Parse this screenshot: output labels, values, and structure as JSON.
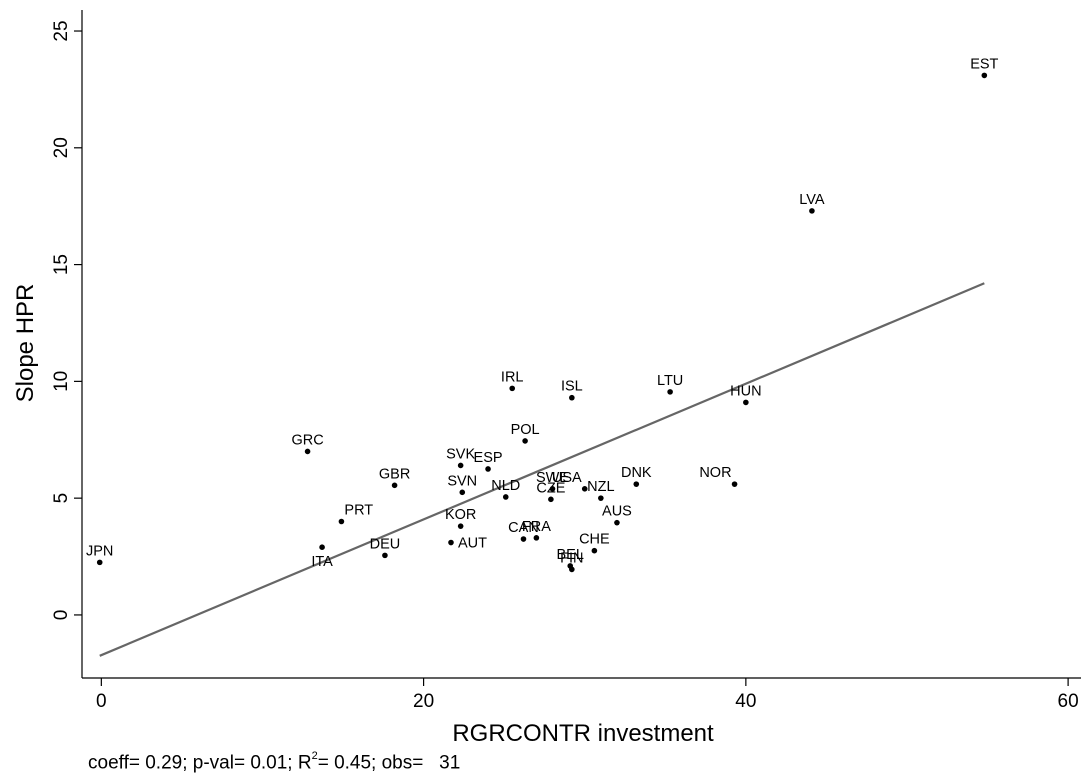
{
  "chart_data": {
    "type": "scatter",
    "title": "",
    "xlabel": "RGRCONTR investment",
    "ylabel": "Slope HPR",
    "xlim": [
      -1.2,
      60.8
    ],
    "ylim": [
      -2.7,
      25.9
    ],
    "xticks": [
      0,
      20,
      40,
      60
    ],
    "yticks": [
      0,
      5,
      10,
      15,
      20,
      25
    ],
    "grid": false,
    "fit_line": {
      "x": [
        -0.1,
        54.8
      ],
      "y": [
        -1.75,
        14.2
      ],
      "color": "#666666"
    },
    "points": [
      {
        "label": "JPN",
        "x": -0.1,
        "y": 2.25,
        "label_pos": "above"
      },
      {
        "label": "ITA",
        "x": 13.7,
        "y": 2.9,
        "label_pos": "below"
      },
      {
        "label": "GRC",
        "x": 12.8,
        "y": 7.0,
        "label_pos": "above"
      },
      {
        "label": "PRT",
        "x": 14.9,
        "y": 4.0,
        "label_pos": "above-right"
      },
      {
        "label": "DEU",
        "x": 17.6,
        "y": 2.55,
        "label_pos": "above"
      },
      {
        "label": "GBR",
        "x": 18.2,
        "y": 5.55,
        "label_pos": "above"
      },
      {
        "label": "SVK",
        "x": 22.3,
        "y": 6.4,
        "label_pos": "above"
      },
      {
        "label": "SVN",
        "x": 22.4,
        "y": 5.25,
        "label_pos": "above"
      },
      {
        "label": "KOR",
        "x": 22.3,
        "y": 3.8,
        "label_pos": "above"
      },
      {
        "label": "AUT",
        "x": 21.7,
        "y": 3.1,
        "label_pos": "right"
      },
      {
        "label": "ESP",
        "x": 24.0,
        "y": 6.25,
        "label_pos": "above"
      },
      {
        "label": "IRL",
        "x": 25.5,
        "y": 9.7,
        "label_pos": "above"
      },
      {
        "label": "NLD",
        "x": 25.1,
        "y": 5.05,
        "label_pos": "above"
      },
      {
        "label": "POL",
        "x": 26.3,
        "y": 7.45,
        "label_pos": "above"
      },
      {
        "label": "CAN",
        "x": 26.2,
        "y": 3.25,
        "label_pos": "above"
      },
      {
        "label": "FRA",
        "x": 27.0,
        "y": 3.3,
        "label_pos": "above"
      },
      {
        "label": "CZE",
        "x": 27.9,
        "y": 4.95,
        "label_pos": "above"
      },
      {
        "label": "SWE",
        "x": 28.0,
        "y": 5.4,
        "label_pos": "above"
      },
      {
        "label": "USA",
        "x": 30.0,
        "y": 5.4,
        "label_pos": "above-left"
      },
      {
        "label": "ISL",
        "x": 29.2,
        "y": 9.3,
        "label_pos": "above"
      },
      {
        "label": "BEL",
        "x": 29.1,
        "y": 2.1,
        "label_pos": "above"
      },
      {
        "label": "FIN",
        "x": 29.2,
        "y": 1.95,
        "label_pos": "above"
      },
      {
        "label": "CHE",
        "x": 30.6,
        "y": 2.75,
        "label_pos": "above"
      },
      {
        "label": "NZL",
        "x": 31.0,
        "y": 5.0,
        "label_pos": "above"
      },
      {
        "label": "AUS",
        "x": 32.0,
        "y": 3.95,
        "label_pos": "above"
      },
      {
        "label": "DNK",
        "x": 33.2,
        "y": 5.6,
        "label_pos": "above"
      },
      {
        "label": "LTU",
        "x": 35.3,
        "y": 9.55,
        "label_pos": "above"
      },
      {
        "label": "NOR",
        "x": 39.3,
        "y": 5.6,
        "label_pos": "above-left"
      },
      {
        "label": "HUN",
        "x": 40.0,
        "y": 9.1,
        "label_pos": "above"
      },
      {
        "label": "LVA",
        "x": 44.1,
        "y": 17.3,
        "label_pos": "above"
      },
      {
        "label": "EST",
        "x": 54.8,
        "y": 23.1,
        "label_pos": "above"
      }
    ]
  },
  "footer": {
    "coeff_text": "coeff= 0.29; p-val= 0.01; R",
    "r2_sup": "2",
    "rest_text": "= 0.45; obs=   31"
  }
}
